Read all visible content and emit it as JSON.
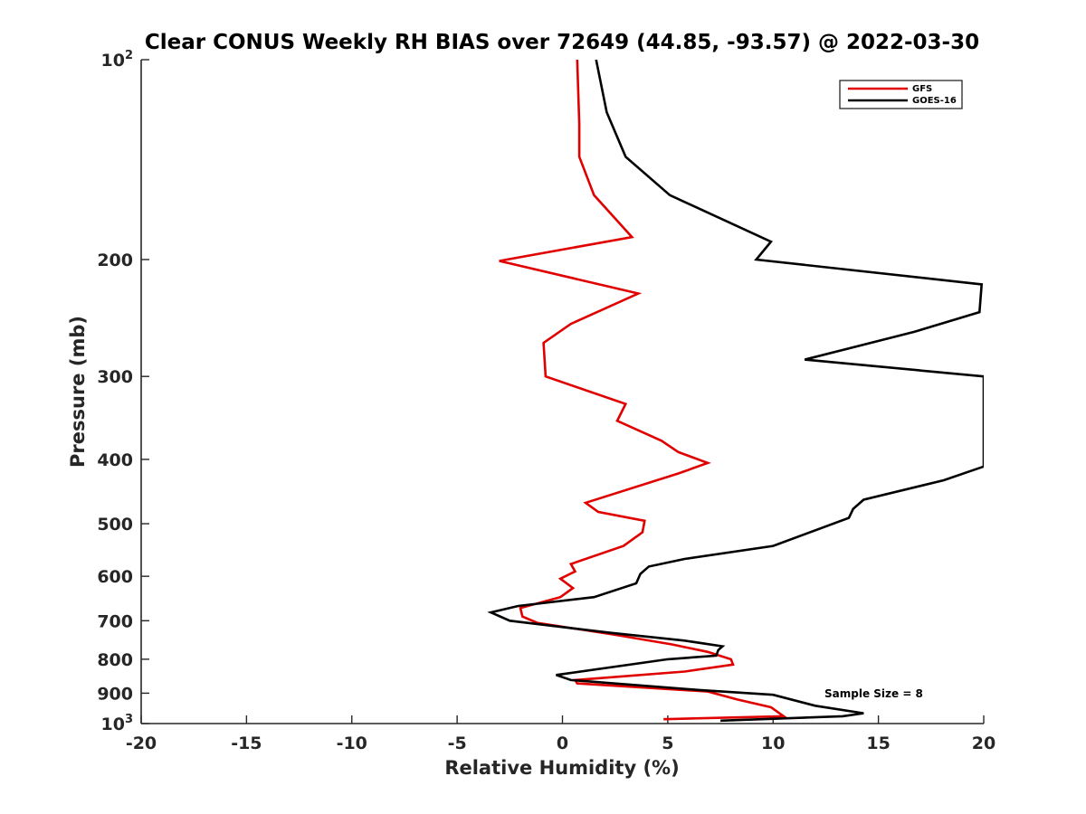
{
  "chart_data": {
    "type": "line",
    "title": "Clear CONUS Weekly RH BIAS over 72649 (44.85, -93.57) @ 2022-03-30",
    "xlabel": "Relative Humidity (%)",
    "ylabel": "Pressure (mb)",
    "xlim": [
      -20,
      20
    ],
    "ylim": [
      100,
      1000
    ],
    "y_scale": "log",
    "y_reversed": true,
    "x_ticks": [
      -20,
      -15,
      -10,
      -5,
      0,
      5,
      10,
      15,
      20
    ],
    "x_tick_labels": [
      "-20",
      "-15",
      "-10",
      "-5",
      "0",
      "5",
      "10",
      "15",
      "20"
    ],
    "y_ticks": [
      100,
      200,
      300,
      400,
      500,
      600,
      700,
      800,
      900,
      1000
    ],
    "y_tick_labels": [
      {
        "base": "10",
        "sup": "2"
      },
      {
        "base": "200"
      },
      {
        "base": "300"
      },
      {
        "base": "400"
      },
      {
        "base": "500"
      },
      {
        "base": "600"
      },
      {
        "base": "700"
      },
      {
        "base": "800"
      },
      {
        "base": "900"
      },
      {
        "base": "10",
        "sup": "3"
      }
    ],
    "grid": false,
    "legend_position": "top-right",
    "annotation": "Sample Size = 8",
    "series": [
      {
        "name": "GFS",
        "color": "#e00000",
        "points": [
          [
            0.7,
            100
          ],
          [
            0.8,
            125
          ],
          [
            0.8,
            140
          ],
          [
            1.5,
            160
          ],
          [
            3.3,
            185
          ],
          [
            -3.0,
            201
          ],
          [
            3.6,
            225
          ],
          [
            0.4,
            250
          ],
          [
            -0.9,
            267
          ],
          [
            -0.8,
            300
          ],
          [
            3.0,
            330
          ],
          [
            2.6,
            350
          ],
          [
            4.7,
            375
          ],
          [
            5.5,
            390
          ],
          [
            6.9,
            405
          ],
          [
            5.5,
            420
          ],
          [
            1.1,
            465
          ],
          [
            1.7,
            480
          ],
          [
            3.9,
            495
          ],
          [
            3.8,
            515
          ],
          [
            2.9,
            540
          ],
          [
            0.4,
            575
          ],
          [
            0.6,
            590
          ],
          [
            -0.1,
            605
          ],
          [
            0.5,
            625
          ],
          [
            -0.1,
            645
          ],
          [
            -2.0,
            670
          ],
          [
            -1.9,
            690
          ],
          [
            -1.2,
            705
          ],
          [
            2.5,
            735
          ],
          [
            5.2,
            760
          ],
          [
            6.9,
            780
          ],
          [
            8.0,
            800
          ],
          [
            8.1,
            815
          ],
          [
            5.8,
            835
          ],
          [
            0.6,
            860
          ],
          [
            0.7,
            870
          ],
          [
            6.9,
            895
          ],
          [
            8.3,
            920
          ],
          [
            9.9,
            945
          ],
          [
            10.5,
            975
          ],
          [
            4.8,
            985
          ]
        ]
      },
      {
        "name": "GOES-16",
        "color": "#000000",
        "points": [
          [
            1.6,
            100
          ],
          [
            2.1,
            120
          ],
          [
            3.0,
            140
          ],
          [
            5.1,
            160
          ],
          [
            9.9,
            188
          ],
          [
            9.2,
            200
          ],
          [
            19.9,
            218
          ],
          [
            19.8,
            240
          ],
          [
            16.7,
            257
          ],
          [
            11.5,
            283
          ],
          [
            20.0,
            300
          ],
          [
            20.0,
            410
          ],
          [
            18.1,
            430
          ],
          [
            14.3,
            460
          ],
          [
            13.8,
            475
          ],
          [
            13.6,
            490
          ],
          [
            10.0,
            540
          ],
          [
            5.8,
            565
          ],
          [
            4.1,
            580
          ],
          [
            3.7,
            595
          ],
          [
            3.5,
            615
          ],
          [
            1.5,
            645
          ],
          [
            -2.1,
            665
          ],
          [
            -3.4,
            680
          ],
          [
            -2.5,
            700
          ],
          [
            2.3,
            730
          ],
          [
            5.8,
            750
          ],
          [
            7.6,
            765
          ],
          [
            7.4,
            775
          ],
          [
            7.3,
            790
          ],
          [
            5.0,
            800
          ],
          [
            -0.3,
            845
          ],
          [
            0.4,
            860
          ],
          [
            6.5,
            890
          ],
          [
            10.0,
            905
          ],
          [
            12.0,
            940
          ],
          [
            14.3,
            965
          ],
          [
            13.3,
            975
          ],
          [
            7.5,
            990
          ]
        ]
      }
    ]
  }
}
